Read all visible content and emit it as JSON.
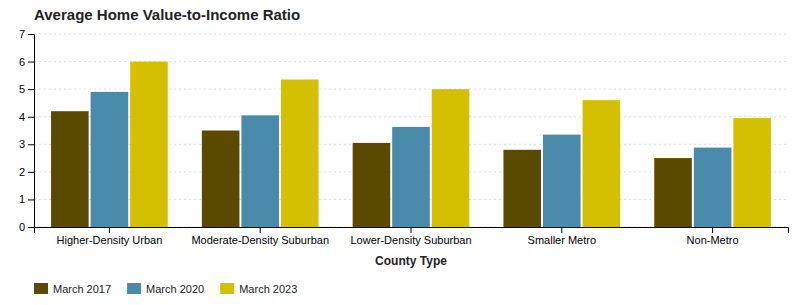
{
  "chart_data": {
    "type": "bar",
    "title": "Average Home Value-to-Income Ratio",
    "categories": [
      "Higher-Density Urban",
      "Moderate-Density Suburban",
      "Lower-Density Suburban",
      "Smaller Metro",
      "Non-Metro"
    ],
    "series": [
      {
        "name": "March 2017",
        "color": "#5a4a00",
        "values": [
          4.2,
          3.5,
          3.05,
          2.8,
          2.5
        ]
      },
      {
        "name": "March 2020",
        "color": "#4a8aaa",
        "values": [
          4.9,
          4.05,
          3.63,
          3.35,
          2.88
        ]
      },
      {
        "name": "March 2023",
        "color": "#d4c000",
        "values": [
          6.0,
          5.35,
          5.0,
          4.6,
          3.95
        ]
      }
    ],
    "xlabel": "County Type",
    "ylim": [
      0,
      7
    ],
    "yticks": [
      0,
      1,
      2,
      3,
      4,
      5,
      6,
      7
    ],
    "grid": true,
    "legend": "lower left"
  }
}
